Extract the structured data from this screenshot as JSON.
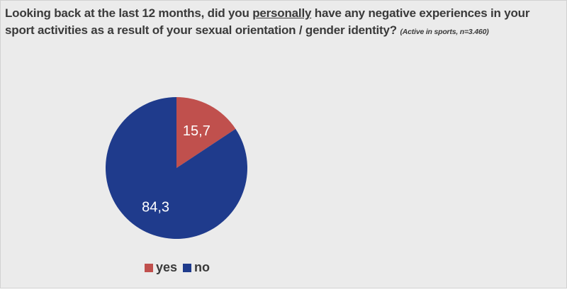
{
  "title": {
    "line_pre": "Looking back at the last 12 months, did you ",
    "line_underlined": "personally",
    "line_post": " have any negative experiences in your sport activities as a result of your sexual orientation / gender identity? ",
    "note": "(Active in sports, n=3.460)"
  },
  "chart_data": {
    "type": "pie",
    "categories": [
      "yes",
      "no"
    ],
    "values": [
      15.7,
      84.3
    ],
    "value_labels": [
      "15,7",
      "84,3"
    ],
    "colors": [
      "#c0504d",
      "#1f3b8c"
    ],
    "legend": {
      "placement": "bottom",
      "entries": [
        "yes",
        "no"
      ]
    }
  }
}
